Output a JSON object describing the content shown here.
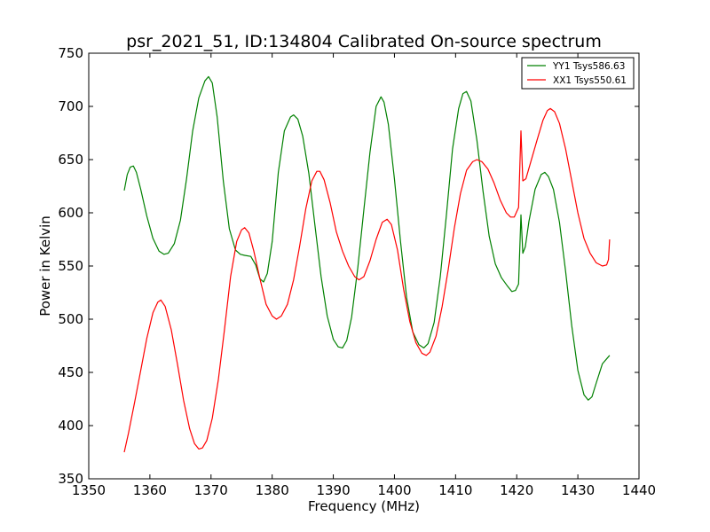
{
  "chart_data": {
    "type": "line",
    "title": "psr_2021_51, ID:134804 Calibrated On-source spectrum",
    "xlabel": "Frequency (MHz)",
    "ylabel": "Power in Kelvin",
    "xlim": [
      1350,
      1440
    ],
    "ylim": [
      350,
      750
    ],
    "xticks": [
      1350,
      1360,
      1370,
      1380,
      1390,
      1400,
      1410,
      1420,
      1430,
      1440
    ],
    "yticks": [
      350,
      400,
      450,
      500,
      550,
      600,
      650,
      700,
      750
    ],
    "grid": false,
    "legend_position": "top-right",
    "series": [
      {
        "name": "YY1 Tsys586.63",
        "color": "#008000",
        "points": [
          [
            1355.8,
            621
          ],
          [
            1356.3,
            636
          ],
          [
            1356.8,
            643
          ],
          [
            1357.3,
            644
          ],
          [
            1357.8,
            638
          ],
          [
            1358.5,
            622
          ],
          [
            1359.5,
            597
          ],
          [
            1360.5,
            576
          ],
          [
            1361.5,
            564
          ],
          [
            1362.3,
            561
          ],
          [
            1363.0,
            562
          ],
          [
            1364.0,
            571
          ],
          [
            1365.0,
            593
          ],
          [
            1366.0,
            632
          ],
          [
            1367.0,
            677
          ],
          [
            1368.0,
            708
          ],
          [
            1369.0,
            724
          ],
          [
            1369.6,
            728
          ],
          [
            1370.2,
            722
          ],
          [
            1371.0,
            690
          ],
          [
            1372.0,
            630
          ],
          [
            1373.0,
            585
          ],
          [
            1374.0,
            565
          ],
          [
            1374.8,
            561
          ],
          [
            1375.5,
            560
          ],
          [
            1376.5,
            559
          ],
          [
            1377.3,
            551
          ],
          [
            1378.0,
            538
          ],
          [
            1378.6,
            535
          ],
          [
            1379.2,
            543
          ],
          [
            1380.0,
            573
          ],
          [
            1381.0,
            638
          ],
          [
            1382.0,
            677
          ],
          [
            1383.0,
            690
          ],
          [
            1383.5,
            692
          ],
          [
            1384.2,
            688
          ],
          [
            1385.0,
            672
          ],
          [
            1386.0,
            637
          ],
          [
            1387.0,
            588
          ],
          [
            1388.0,
            540
          ],
          [
            1389.0,
            503
          ],
          [
            1390.0,
            481
          ],
          [
            1390.8,
            474
          ],
          [
            1391.5,
            473
          ],
          [
            1392.2,
            480
          ],
          [
            1393.0,
            502
          ],
          [
            1394.0,
            548
          ],
          [
            1395.0,
            603
          ],
          [
            1396.0,
            657
          ],
          [
            1397.0,
            700
          ],
          [
            1397.8,
            709
          ],
          [
            1398.3,
            704
          ],
          [
            1399.0,
            683
          ],
          [
            1400.0,
            632
          ],
          [
            1401.0,
            573
          ],
          [
            1402.0,
            520
          ],
          [
            1403.0,
            488
          ],
          [
            1404.0,
            476
          ],
          [
            1404.8,
            473
          ],
          [
            1405.5,
            477
          ],
          [
            1406.5,
            497
          ],
          [
            1407.5,
            540
          ],
          [
            1408.5,
            598
          ],
          [
            1409.5,
            660
          ],
          [
            1410.5,
            698
          ],
          [
            1411.2,
            712
          ],
          [
            1411.8,
            714
          ],
          [
            1412.5,
            705
          ],
          [
            1413.5,
            668
          ],
          [
            1414.5,
            620
          ],
          [
            1415.5,
            578
          ],
          [
            1416.5,
            552
          ],
          [
            1417.5,
            539
          ],
          [
            1418.5,
            531
          ],
          [
            1419.2,
            526
          ],
          [
            1419.8,
            527
          ],
          [
            1420.3,
            533
          ],
          [
            1420.7,
            598
          ],
          [
            1421.0,
            562
          ],
          [
            1421.4,
            568
          ],
          [
            1422.0,
            592
          ],
          [
            1423.0,
            622
          ],
          [
            1424.0,
            636
          ],
          [
            1424.6,
            638
          ],
          [
            1425.2,
            634
          ],
          [
            1426.0,
            622
          ],
          [
            1427.0,
            591
          ],
          [
            1428.0,
            545
          ],
          [
            1429.0,
            494
          ],
          [
            1430.0,
            452
          ],
          [
            1431.0,
            429
          ],
          [
            1431.7,
            424
          ],
          [
            1432.3,
            427
          ],
          [
            1433.0,
            440
          ],
          [
            1434.0,
            458
          ],
          [
            1435.2,
            466
          ]
        ]
      },
      {
        "name": "XX1 Tsys550.61",
        "color": "#ff0000",
        "points": [
          [
            1355.8,
            375
          ],
          [
            1356.5,
            393
          ],
          [
            1357.5,
            422
          ],
          [
            1358.5,
            452
          ],
          [
            1359.5,
            482
          ],
          [
            1360.5,
            506
          ],
          [
            1361.3,
            516
          ],
          [
            1361.8,
            518
          ],
          [
            1362.5,
            512
          ],
          [
            1363.5,
            490
          ],
          [
            1364.5,
            458
          ],
          [
            1365.5,
            424
          ],
          [
            1366.5,
            397
          ],
          [
            1367.3,
            383
          ],
          [
            1368.0,
            378
          ],
          [
            1368.6,
            379
          ],
          [
            1369.3,
            386
          ],
          [
            1370.2,
            407
          ],
          [
            1371.2,
            443
          ],
          [
            1372.2,
            490
          ],
          [
            1373.2,
            540
          ],
          [
            1374.2,
            573
          ],
          [
            1375.0,
            584
          ],
          [
            1375.5,
            586
          ],
          [
            1376.2,
            581
          ],
          [
            1377.0,
            564
          ],
          [
            1378.0,
            538
          ],
          [
            1379.0,
            514
          ],
          [
            1380.0,
            503
          ],
          [
            1380.7,
            500
          ],
          [
            1381.5,
            503
          ],
          [
            1382.5,
            514
          ],
          [
            1383.5,
            537
          ],
          [
            1384.5,
            569
          ],
          [
            1385.5,
            604
          ],
          [
            1386.5,
            630
          ],
          [
            1387.3,
            639
          ],
          [
            1387.8,
            639
          ],
          [
            1388.5,
            631
          ],
          [
            1389.5,
            609
          ],
          [
            1390.5,
            582
          ],
          [
            1391.5,
            564
          ],
          [
            1392.5,
            550
          ],
          [
            1393.5,
            540
          ],
          [
            1394.2,
            537
          ],
          [
            1395.0,
            540
          ],
          [
            1396.0,
            555
          ],
          [
            1397.0,
            575
          ],
          [
            1398.0,
            591
          ],
          [
            1398.8,
            594
          ],
          [
            1399.5,
            589
          ],
          [
            1400.5,
            565
          ],
          [
            1401.5,
            528
          ],
          [
            1402.5,
            498
          ],
          [
            1403.5,
            478
          ],
          [
            1404.5,
            468
          ],
          [
            1405.2,
            466
          ],
          [
            1405.8,
            469
          ],
          [
            1406.8,
            484
          ],
          [
            1407.8,
            512
          ],
          [
            1408.8,
            547
          ],
          [
            1409.8,
            586
          ],
          [
            1410.8,
            618
          ],
          [
            1411.8,
            640
          ],
          [
            1412.8,
            648
          ],
          [
            1413.5,
            650
          ],
          [
            1414.3,
            648
          ],
          [
            1415.3,
            641
          ],
          [
            1416.3,
            628
          ],
          [
            1417.3,
            612
          ],
          [
            1418.3,
            600
          ],
          [
            1419.0,
            596
          ],
          [
            1419.6,
            596
          ],
          [
            1420.3,
            605
          ],
          [
            1420.7,
            677
          ],
          [
            1421.0,
            630
          ],
          [
            1421.5,
            632
          ],
          [
            1422.3,
            648
          ],
          [
            1423.3,
            668
          ],
          [
            1424.3,
            687
          ],
          [
            1425.0,
            696
          ],
          [
            1425.5,
            698
          ],
          [
            1426.2,
            695
          ],
          [
            1427.0,
            684
          ],
          [
            1428.0,
            660
          ],
          [
            1429.0,
            630
          ],
          [
            1430.0,
            600
          ],
          [
            1431.0,
            576
          ],
          [
            1432.0,
            562
          ],
          [
            1433.0,
            553
          ],
          [
            1434.0,
            550
          ],
          [
            1434.7,
            551
          ],
          [
            1435.0,
            556
          ],
          [
            1435.2,
            575
          ]
        ]
      }
    ]
  }
}
